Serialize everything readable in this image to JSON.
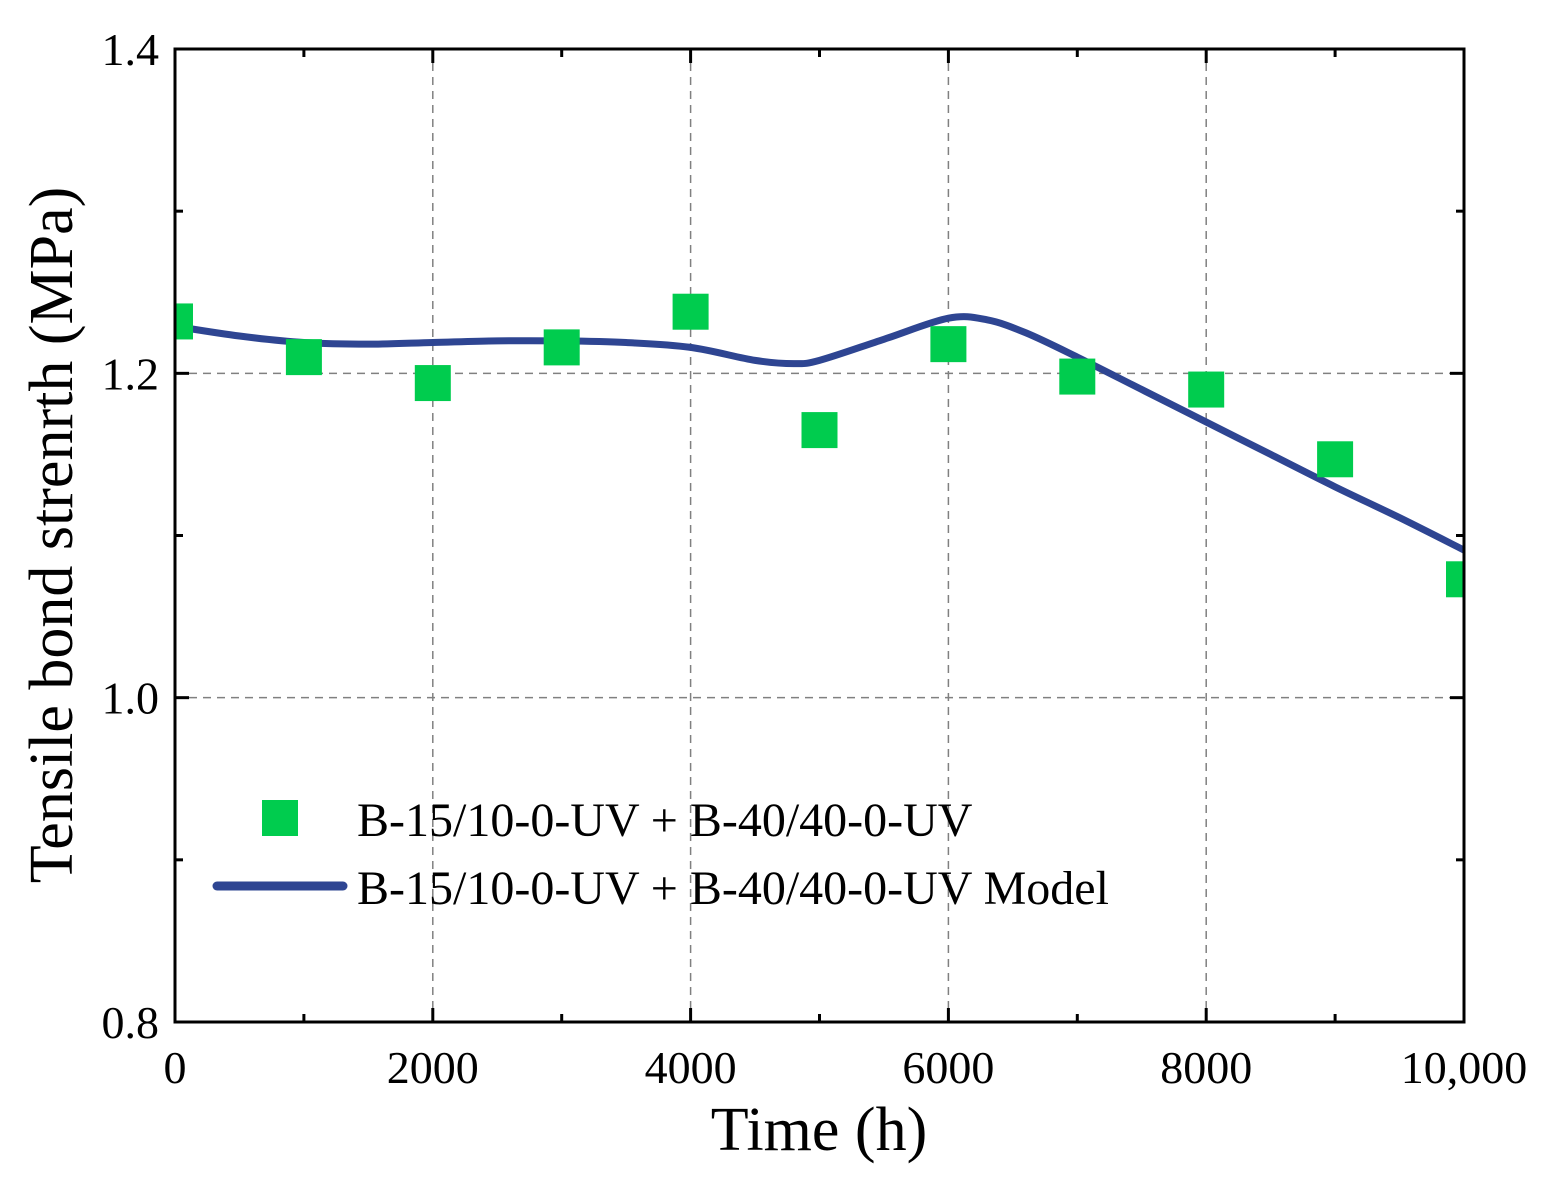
{
  "chart_data": {
    "type": "scatter",
    "title": "",
    "xlabel": "Time (h)",
    "ylabel": "Tensile bond strenrth (MPa)",
    "xlim": [
      0,
      10000
    ],
    "ylim": [
      0.8,
      1.4
    ],
    "grid": true,
    "legend_position": "bottom-left",
    "xticks": [
      0,
      2000,
      4000,
      6000,
      8000,
      10000
    ],
    "xtick_labels": [
      "0",
      "2000",
      "4000",
      "6000",
      "8000",
      "10,000"
    ],
    "yticks": [
      0.8,
      1.0,
      1.2,
      1.4
    ],
    "ytick_labels": [
      "0.8",
      "1.0",
      "1.2",
      "1.4"
    ],
    "series": [
      {
        "name": "B-15/10-0-UV + B-40/40-0-UV",
        "kind": "scatter",
        "marker": "square",
        "color": "#00CC4E",
        "x": [
          0,
          1000,
          2000,
          3000,
          4000,
          5000,
          6000,
          7000,
          8000,
          9000,
          10000
        ],
        "y": [
          1.232,
          1.21,
          1.194,
          1.216,
          1.238,
          1.165,
          1.218,
          1.198,
          1.19,
          1.147,
          1.073
        ]
      },
      {
        "name": "B-15/10-0-UV + B-40/40-0-UV Model",
        "kind": "line",
        "color": "#2E4592",
        "x": [
          0,
          500,
          1000,
          1500,
          2000,
          2500,
          3000,
          3500,
          4000,
          4500,
          4800,
          5000,
          5500,
          6000,
          6300,
          6600,
          7000,
          7500,
          8000,
          8500,
          9000,
          9500,
          10000
        ],
        "y": [
          1.229,
          1.223,
          1.219,
          1.218,
          1.219,
          1.22,
          1.22,
          1.219,
          1.216,
          1.208,
          1.206,
          1.208,
          1.221,
          1.234,
          1.233,
          1.225,
          1.21,
          1.19,
          1.17,
          1.15,
          1.13,
          1.111,
          1.091
        ]
      }
    ]
  }
}
